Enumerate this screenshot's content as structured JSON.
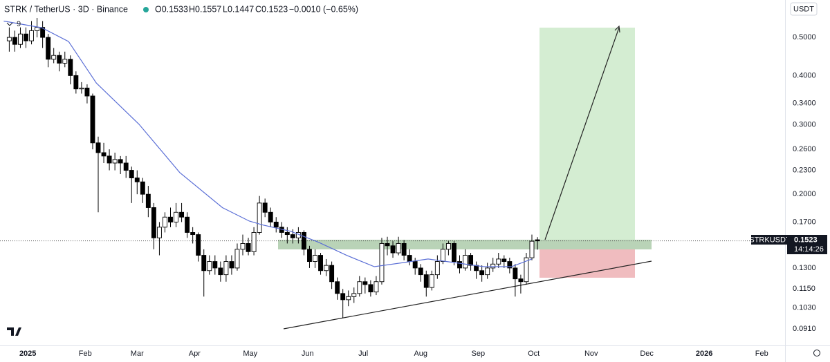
{
  "chart_data": {
    "type": "candlestick",
    "title": "STRK / TetherUS · 3D · Binance",
    "ohlc_text": [
      "O0.1533",
      "H0.1557",
      "L0.1447",
      "C0.1523"
    ],
    "change_text": "−0.0010 (−0.65%)",
    "currency": "USDT",
    "indicator_label": "9",
    "symbol_tag": "STRKUSDT",
    "countdown": "14:14:26",
    "log_scale": true,
    "grid": false,
    "up_color": "#ffffff",
    "down_color": "#000000",
    "x": [
      -10,
      -7,
      -4,
      -1,
      2,
      5,
      8,
      11,
      14,
      17,
      20,
      23,
      26,
      29,
      32,
      35,
      38,
      41,
      44,
      47,
      50,
      53,
      56,
      59,
      62,
      65,
      68,
      71,
      74,
      77,
      80,
      83,
      86,
      89,
      92,
      95,
      98,
      101,
      104,
      107,
      110,
      113,
      116,
      119,
      122,
      125,
      128,
      131,
      134,
      137,
      140,
      143,
      146,
      149,
      152,
      155,
      158,
      161,
      164,
      167,
      170,
      173,
      176,
      179,
      182,
      185,
      188,
      191,
      194,
      197,
      200,
      203,
      206,
      209,
      212,
      215,
      218,
      221,
      224,
      227,
      230,
      233,
      236,
      239,
      242,
      245,
      248,
      251,
      254,
      257,
      260,
      263,
      266,
      269,
      272,
      275
    ],
    "open": [
      0.49,
      0.5,
      0.48,
      0.51,
      0.49,
      0.52,
      0.53,
      0.5,
      0.44,
      0.45,
      0.43,
      0.44,
      0.4,
      0.37,
      0.372,
      0.355,
      0.27,
      0.255,
      0.25,
      0.24,
      0.245,
      0.24,
      0.23,
      0.22,
      0.215,
      0.2,
      0.185,
      0.155,
      0.165,
      0.175,
      0.17,
      0.18,
      0.175,
      0.16,
      0.158,
      0.14,
      0.128,
      0.135,
      0.13,
      0.125,
      0.135,
      0.13,
      0.145,
      0.15,
      0.143,
      0.16,
      0.19,
      0.18,
      0.17,
      0.165,
      0.16,
      0.158,
      0.155,
      0.16,
      0.145,
      0.135,
      0.14,
      0.128,
      0.132,
      0.12,
      0.112,
      0.108,
      0.11,
      0.112,
      0.12,
      0.118,
      0.113,
      0.12,
      0.15,
      0.148,
      0.142,
      0.15,
      0.14,
      0.135,
      0.13,
      0.125,
      0.116,
      0.125,
      0.135,
      0.145,
      0.15,
      0.135,
      0.13,
      0.14,
      0.132,
      0.128,
      0.125,
      0.13,
      0.133,
      0.137,
      0.135,
      0.13,
      0.122,
      0.12,
      0.138,
      0.1533
    ],
    "high": [
      0.53,
      0.52,
      0.53,
      0.53,
      0.55,
      0.56,
      0.55,
      0.51,
      0.47,
      0.46,
      0.46,
      0.45,
      0.41,
      0.385,
      0.38,
      0.36,
      0.28,
      0.27,
      0.26,
      0.255,
      0.25,
      0.25,
      0.235,
      0.23,
      0.22,
      0.21,
      0.19,
      0.17,
      0.18,
      0.185,
      0.19,
      0.19,
      0.18,
      0.165,
      0.16,
      0.145,
      0.14,
      0.14,
      0.135,
      0.14,
      0.14,
      0.15,
      0.158,
      0.155,
      0.165,
      0.198,
      0.195,
      0.185,
      0.175,
      0.17,
      0.165,
      0.163,
      0.165,
      0.162,
      0.148,
      0.145,
      0.142,
      0.137,
      0.135,
      0.123,
      0.115,
      0.114,
      0.116,
      0.124,
      0.123,
      0.121,
      0.124,
      0.155,
      0.156,
      0.152,
      0.156,
      0.153,
      0.145,
      0.138,
      0.133,
      0.128,
      0.128,
      0.14,
      0.15,
      0.152,
      0.152,
      0.14,
      0.145,
      0.142,
      0.135,
      0.132,
      0.134,
      0.138,
      0.142,
      0.14,
      0.138,
      0.133,
      0.125,
      0.142,
      0.158,
      0.1557
    ],
    "low": [
      0.46,
      0.46,
      0.47,
      0.47,
      0.48,
      0.5,
      0.47,
      0.42,
      0.43,
      0.41,
      0.42,
      0.38,
      0.36,
      0.36,
      0.34,
      0.26,
      0.18,
      0.24,
      0.23,
      0.23,
      0.225,
      0.22,
      0.19,
      0.2,
      0.19,
      0.175,
      0.145,
      0.14,
      0.16,
      0.165,
      0.165,
      0.17,
      0.155,
      0.15,
      0.135,
      0.11,
      0.125,
      0.125,
      0.12,
      0.12,
      0.125,
      0.128,
      0.14,
      0.14,
      0.14,
      0.158,
      0.175,
      0.165,
      0.16,
      0.155,
      0.15,
      0.15,
      0.15,
      0.14,
      0.13,
      0.13,
      0.125,
      0.124,
      0.115,
      0.108,
      0.097,
      0.104,
      0.106,
      0.11,
      0.112,
      0.11,
      0.111,
      0.118,
      0.14,
      0.138,
      0.14,
      0.136,
      0.132,
      0.125,
      0.12,
      0.11,
      0.114,
      0.122,
      0.133,
      0.14,
      0.132,
      0.126,
      0.128,
      0.128,
      0.122,
      0.12,
      0.122,
      0.127,
      0.13,
      0.13,
      0.126,
      0.11,
      0.112,
      0.118,
      0.136,
      0.1447
    ],
    "close": [
      0.5,
      0.48,
      0.51,
      0.49,
      0.52,
      0.53,
      0.5,
      0.44,
      0.45,
      0.43,
      0.44,
      0.4,
      0.37,
      0.372,
      0.355,
      0.27,
      0.255,
      0.25,
      0.24,
      0.245,
      0.24,
      0.23,
      0.22,
      0.215,
      0.2,
      0.185,
      0.155,
      0.165,
      0.175,
      0.17,
      0.18,
      0.175,
      0.16,
      0.158,
      0.14,
      0.128,
      0.135,
      0.13,
      0.125,
      0.135,
      0.13,
      0.145,
      0.15,
      0.143,
      0.16,
      0.19,
      0.18,
      0.17,
      0.165,
      0.16,
      0.158,
      0.155,
      0.16,
      0.145,
      0.135,
      0.14,
      0.128,
      0.132,
      0.12,
      0.112,
      0.108,
      0.11,
      0.112,
      0.12,
      0.118,
      0.113,
      0.12,
      0.15,
      0.148,
      0.142,
      0.15,
      0.14,
      0.135,
      0.13,
      0.125,
      0.116,
      0.125,
      0.135,
      0.145,
      0.15,
      0.135,
      0.13,
      0.14,
      0.132,
      0.128,
      0.125,
      0.13,
      0.133,
      0.137,
      0.135,
      0.13,
      0.122,
      0.12,
      0.138,
      0.152,
      0.1523
    ],
    "ma": {
      "color": "#5b6fd6",
      "x": [
        -13,
        7.5,
        22,
        37,
        60,
        82,
        105,
        119.5,
        127,
        142,
        157,
        172,
        187,
        202,
        216,
        231,
        246,
        261,
        272
      ],
      "values": [
        0.55,
        0.529,
        0.488,
        0.383,
        0.301,
        0.227,
        0.185,
        0.171,
        0.167,
        0.161,
        0.151,
        0.14,
        0.131,
        0.134,
        0.137,
        0.134,
        0.131,
        0.131,
        0.137
      ]
    },
    "xlim": [
      -15,
      408.6
    ],
    "xticks": [
      {
        "value": 0,
        "label": "2025"
      },
      {
        "value": 31,
        "label": "Feb"
      },
      {
        "value": 59,
        "label": "Mar"
      },
      {
        "value": 90,
        "label": "Apr"
      },
      {
        "value": 120,
        "label": "May"
      },
      {
        "value": 151,
        "label": "Jun"
      },
      {
        "value": 181,
        "label": "Jul"
      },
      {
        "value": 212,
        "label": "Aug"
      },
      {
        "value": 243,
        "label": "Sep"
      },
      {
        "value": 273,
        "label": "Oct"
      },
      {
        "value": 304,
        "label": "Nov"
      },
      {
        "value": 334,
        "label": "Dec"
      },
      {
        "value": 365,
        "label": "2026"
      },
      {
        "value": 396,
        "label": "Feb"
      }
    ],
    "ylim": [
      0.0827,
      0.622
    ],
    "yticks": [
      {
        "value": 0.5,
        "label": "0.5000"
      },
      {
        "value": 0.4,
        "label": "0.4000"
      },
      {
        "value": 0.34,
        "label": "0.3400"
      },
      {
        "value": 0.3,
        "label": "0.3000"
      },
      {
        "value": 0.26,
        "label": "0.2600"
      },
      {
        "value": 0.23,
        "label": "0.2300"
      },
      {
        "value": 0.2,
        "label": "0.2000"
      },
      {
        "value": 0.17,
        "label": "0.1700"
      },
      {
        "value": 0.13,
        "label": "0.1300"
      },
      {
        "value": 0.115,
        "label": "0.1150"
      },
      {
        "value": 0.103,
        "label": "0.1030"
      },
      {
        "value": 0.091,
        "label": "0.0910"
      }
    ]
  }
}
